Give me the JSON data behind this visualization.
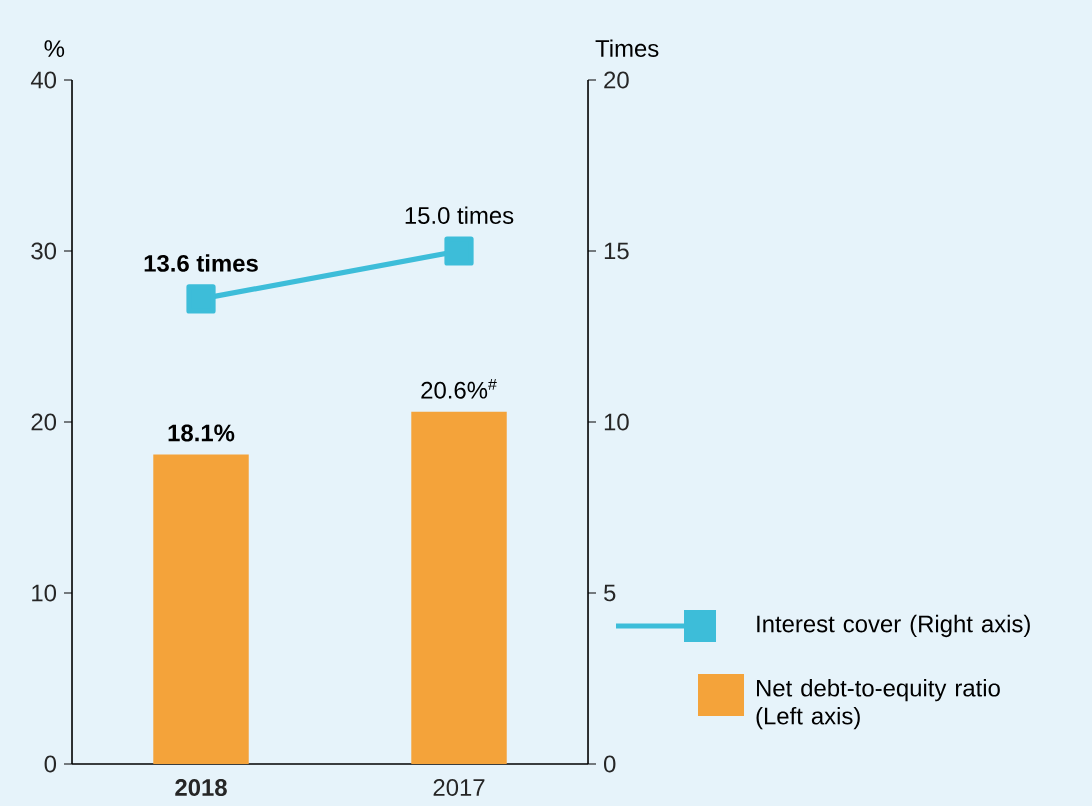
{
  "chart_data": {
    "type": "bar",
    "ylabel": "%",
    "y2label": "Times",
    "categories": [
      "**2018**",
      "2017"
    ],
    "series": [
      {
        "name": "Interest cover (Right axis)",
        "type": "line",
        "axis": "y2",
        "color": "#3dbdd9",
        "marker": "square",
        "values": [
          13.6,
          15.0
        ],
        "value_labels": [
          "**13.6 times**",
          "15.0 times"
        ]
      },
      {
        "name": "Net debt-to-equity ratio (Left axis)",
        "axis": "y",
        "color": "#f4a33a",
        "values": [
          18.1,
          20.6
        ],
        "value_labels": [
          "**18.1%**",
          "20.6%$^{#}$"
        ]
      }
    ],
    "ylim": [
      0,
      40
    ],
    "yticks": [
      0,
      10,
      20,
      30,
      40
    ],
    "y2lim": [
      0,
      20
    ],
    "y2ticks": [
      0,
      5,
      10,
      15,
      20
    ],
    "legend": "right"
  }
}
